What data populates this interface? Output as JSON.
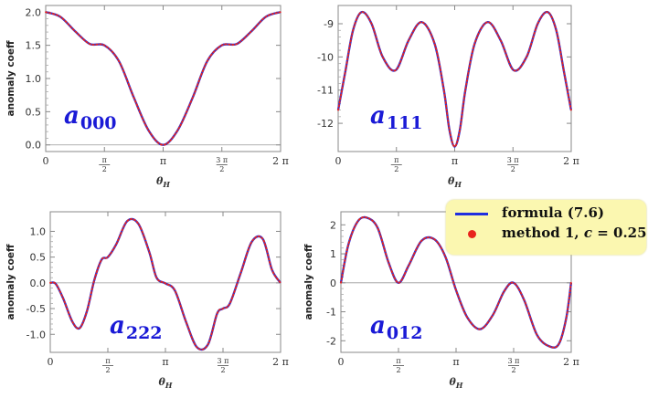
{
  "chart_data": [
    {
      "type": "line",
      "panel": "a000",
      "label_main": "a",
      "label_sub": "000",
      "xlabel": "θ",
      "xlabel_sub": "H",
      "ylabel": "anomaly coeff",
      "xlim": [
        0,
        6.2832
      ],
      "ylim": [
        -0.1,
        2.1
      ],
      "yticks": [
        0.0,
        0.5,
        1.0,
        1.5,
        2.0
      ],
      "ytick_labels": [
        "0.0",
        "0.5",
        "1.0",
        "1.5",
        "2.0"
      ],
      "series": [
        {
          "x": [
            0,
            0.39,
            0.79,
            1.18,
            1.57,
            1.96,
            2.36,
            2.75,
            3.14,
            3.53,
            3.93,
            4.32,
            4.71,
            5.11,
            5.5,
            5.89,
            6.28
          ],
          "y": [
            2.0,
            1.93,
            1.71,
            1.52,
            1.5,
            1.26,
            0.71,
            0.22,
            0.0,
            0.22,
            0.71,
            1.26,
            1.5,
            1.52,
            1.71,
            1.93,
            2.0
          ]
        }
      ]
    },
    {
      "type": "line",
      "panel": "a111",
      "label_main": "a",
      "label_sub": "111",
      "xlabel": "θ",
      "xlabel_sub": "H",
      "ylabel": "",
      "xlim": [
        0,
        6.2832
      ],
      "ylim": [
        -12.85,
        -8.45
      ],
      "yticks": [
        -12,
        -11,
        -10,
        -9
      ],
      "ytick_labels": [
        "-12",
        "-11",
        "-10",
        "-9"
      ],
      "series": [
        {
          "x": [
            0,
            0.2,
            0.4,
            0.63,
            0.9,
            1.2,
            1.55,
            1.9,
            2.25,
            2.6,
            2.85,
            3.0,
            3.14,
            3.28,
            3.43,
            3.68,
            4.03,
            4.38,
            4.73,
            5.08,
            5.38,
            5.65,
            5.88,
            6.08,
            6.28
          ],
          "y": [
            -11.6,
            -10.4,
            -9.2,
            -8.65,
            -9.0,
            -10.0,
            -10.4,
            -9.5,
            -8.95,
            -9.6,
            -11.0,
            -12.2,
            -12.7,
            -12.2,
            -11.0,
            -9.6,
            -8.95,
            -9.5,
            -10.4,
            -10.0,
            -9.0,
            -8.65,
            -9.2,
            -10.4,
            -11.6
          ]
        }
      ]
    },
    {
      "type": "line",
      "panel": "a222",
      "label_main": "a",
      "label_sub": "222",
      "xlabel": "θ",
      "xlabel_sub": "H",
      "ylabel": "anomaly coeff",
      "xlim": [
        0,
        6.2832
      ],
      "ylim": [
        -1.35,
        1.38
      ],
      "yticks": [
        -1.0,
        -0.5,
        0.0,
        0.5,
        1.0
      ],
      "ytick_labels": [
        "-1.0",
        "-0.5",
        "0.0",
        "0.5",
        "1.0"
      ],
      "series": [
        {
          "x": [
            0,
            0.15,
            0.35,
            0.6,
            0.8,
            1.0,
            1.2,
            1.4,
            1.57,
            1.8,
            2.1,
            2.4,
            2.7,
            2.9,
            3.14,
            3.4,
            3.7,
            4.0,
            4.3,
            4.55,
            4.71,
            4.9,
            5.2,
            5.5,
            5.8,
            6.05,
            6.28
          ],
          "y": [
            0.0,
            -0.02,
            -0.3,
            -0.75,
            -0.88,
            -0.55,
            0.05,
            0.45,
            0.5,
            0.75,
            1.2,
            1.15,
            0.6,
            0.1,
            -0.01,
            -0.15,
            -0.75,
            -1.25,
            -1.2,
            -0.6,
            -0.5,
            -0.4,
            0.2,
            0.8,
            0.85,
            0.25,
            0.0
          ]
        }
      ]
    },
    {
      "type": "line",
      "panel": "a012",
      "label_main": "a",
      "label_sub": "012",
      "xlabel": "θ",
      "xlabel_sub": "H",
      "ylabel": "anomaly coeff",
      "xlim": [
        0,
        6.2832
      ],
      "ylim": [
        -2.4,
        2.45
      ],
      "yticks": [
        -2,
        -1,
        0,
        1,
        2
      ],
      "ytick_labels": [
        "-2",
        "-1",
        "0",
        "1",
        "2"
      ],
      "series": [
        {
          "x": [
            0,
            0.2,
            0.45,
            0.7,
            1.0,
            1.3,
            1.57,
            1.85,
            2.2,
            2.55,
            2.85,
            3.14,
            3.45,
            3.8,
            4.15,
            4.45,
            4.71,
            5.0,
            5.35,
            5.7,
            5.95,
            6.15,
            6.28
          ],
          "y": [
            0.0,
            1.3,
            2.1,
            2.25,
            1.9,
            0.7,
            0.0,
            0.6,
            1.45,
            1.5,
            0.9,
            -0.25,
            -1.2,
            -1.6,
            -1.1,
            -0.3,
            0.0,
            -0.6,
            -1.8,
            -2.2,
            -2.1,
            -1.2,
            0.0
          ]
        }
      ]
    }
  ],
  "xticks": [
    0,
    1.5708,
    3.1416,
    4.7124,
    6.2832
  ],
  "xtick_labels": [
    {
      "kind": "plain",
      "text": "0"
    },
    {
      "kind": "frac",
      "num": "π",
      "den": "2"
    },
    {
      "kind": "plain",
      "text": "π"
    },
    {
      "kind": "frac",
      "num": "3 π",
      "den": "2"
    },
    {
      "kind": "plain",
      "text": "2 π"
    }
  ],
  "legend": {
    "position": "right-center",
    "entries": [
      {
        "label": "formula (7.6)",
        "marker": "line",
        "color": "#1f2fe0"
      },
      {
        "label": "method 1,  c = 0.25",
        "marker": "dot",
        "color": "#e8241c"
      }
    ]
  },
  "colors": {
    "formula": "#1f2fe0",
    "method": "#e8241c",
    "legend_bg": "#fbf7b0"
  }
}
